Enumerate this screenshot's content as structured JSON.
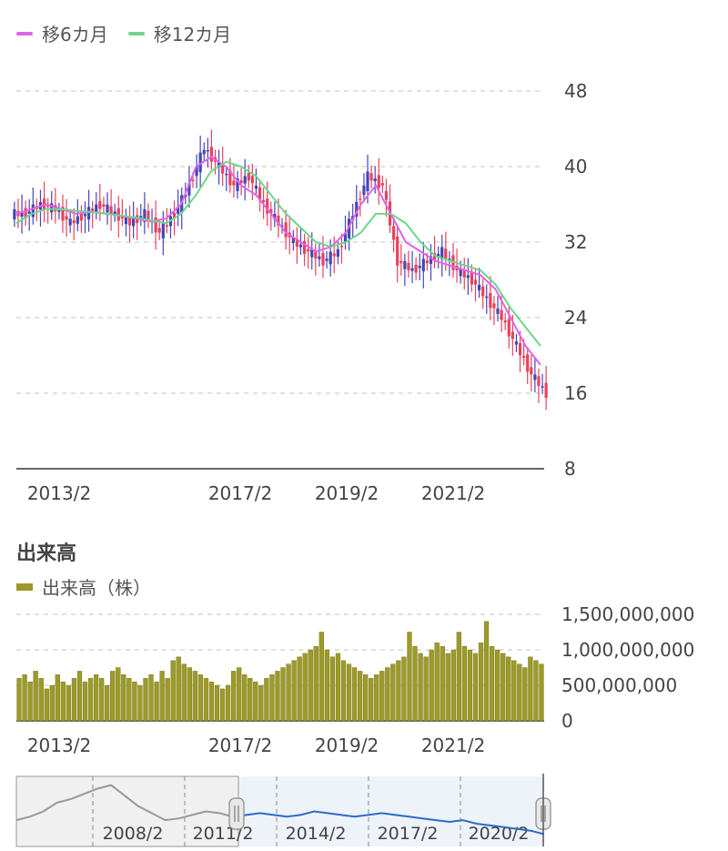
{
  "colors": {
    "up": "#4545b8",
    "down": "#e8425c",
    "ma6": "#e262e8",
    "ma12": "#6cd68a",
    "volume": "#9c9a2a",
    "nav": "#2f69c9"
  },
  "price_legend": [
    {
      "label": "移6カ月",
      "color": "#e262e8"
    },
    {
      "label": "移12カ月",
      "color": "#6cd68a"
    }
  ],
  "volume_section": {
    "title": "出来高",
    "legend_label": "出来高（株）"
  },
  "chart_data": [
    {
      "type": "candlestick",
      "title": "",
      "x_ticks": [
        "2013/2",
        "2017/2",
        "2019/2",
        "2021/2"
      ],
      "y_ticks": [
        "48",
        "40",
        "32",
        "24",
        "16",
        "8"
      ],
      "ylim": [
        8,
        48
      ],
      "grid": true,
      "series": [
        {
          "name": "移6カ月",
          "values": [
            35,
            35.5,
            36,
            35.5,
            35,
            35.2,
            35,
            34.8,
            34.5,
            34.2,
            34.5,
            36,
            40,
            41,
            40,
            38,
            37,
            35,
            33,
            32,
            31,
            31.5,
            33,
            36,
            38,
            35,
            32,
            31,
            30,
            29.5,
            29,
            28.5,
            27,
            24,
            21,
            19
          ]
        },
        {
          "name": "移12カ月",
          "values": [
            34,
            35,
            35.5,
            35.5,
            35.3,
            35.2,
            35,
            34.8,
            34.6,
            34.3,
            34,
            35,
            37,
            39.5,
            40.5,
            40,
            39,
            37,
            35,
            33.5,
            32,
            31.5,
            32,
            33,
            35,
            35,
            34,
            32,
            30.5,
            30,
            29.5,
            29,
            27.5,
            25,
            23,
            21
          ]
        }
      ],
      "close": [
        35,
        36,
        35.5,
        34,
        35,
        36,
        35,
        34,
        35,
        33,
        35,
        38,
        42,
        40,
        38,
        39,
        36,
        34,
        32,
        31,
        30,
        31,
        35,
        39,
        38,
        30,
        29,
        30,
        31,
        29,
        28,
        26,
        24,
        21,
        18,
        16
      ]
    },
    {
      "type": "bar",
      "title": "出来高",
      "x_ticks": [
        "2013/2",
        "2017/2",
        "2019/2",
        "2021/2"
      ],
      "y_ticks": [
        "1,500,000,000",
        "1,000,000,000",
        "500,000,000",
        "0"
      ],
      "ylim": [
        0,
        1500000000
      ],
      "values_millions": [
        600,
        650,
        550,
        700,
        600,
        450,
        500,
        650,
        550,
        500,
        600,
        700,
        550,
        600,
        650,
        600,
        500,
        700,
        750,
        650,
        600,
        550,
        500,
        600,
        650,
        550,
        700,
        600,
        850,
        900,
        800,
        750,
        700,
        650,
        600,
        550,
        500,
        450,
        500,
        700,
        750,
        650,
        600,
        550,
        500,
        600,
        650,
        700,
        750,
        800,
        850,
        900,
        950,
        1000,
        1050,
        1250,
        1000,
        900,
        950,
        850,
        800,
        750,
        700,
        650,
        600,
        650,
        700,
        750,
        800,
        850,
        900,
        1250,
        1050,
        950,
        900,
        1000,
        1100,
        1050,
        950,
        1000,
        1250,
        1050,
        1000,
        950,
        1100,
        1400,
        1050,
        1000,
        950,
        900,
        850,
        800,
        750,
        900,
        850,
        800
      ]
    },
    {
      "type": "area",
      "title": "",
      "x_ticks": [
        "2008/2",
        "2011/2",
        "2014/2",
        "2017/2",
        "2020/2"
      ],
      "values": [
        30,
        32,
        35,
        40,
        42,
        45,
        48,
        50,
        44,
        38,
        34,
        30,
        31,
        33,
        35,
        34,
        32,
        33,
        34,
        33,
        32,
        33,
        35,
        34,
        33,
        32,
        33,
        34,
        33,
        32,
        31,
        30,
        29,
        30,
        28,
        27,
        26,
        25,
        24,
        22
      ]
    }
  ]
}
